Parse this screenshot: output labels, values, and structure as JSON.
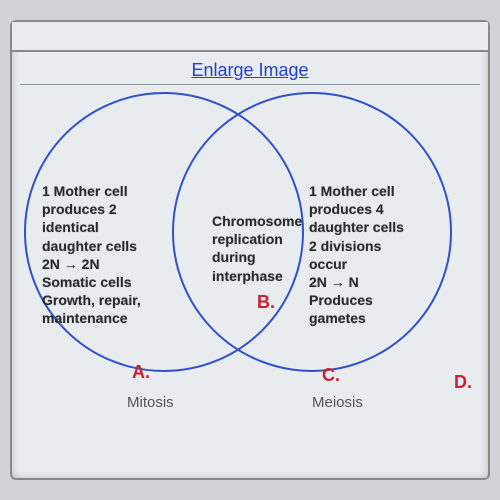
{
  "link_text": "Enlarge Image",
  "venn": {
    "type": "venn-2",
    "circle_border_color": "#3050cc",
    "label_color": "#cc2030",
    "text_color": "#2a2a2a",
    "background": "#e8ecef",
    "left": {
      "lines": [
        "1 Mother cell",
        "produces 2",
        "identical",
        "daughter cells",
        "2N → 2N",
        "Somatic cells",
        "Growth, repair,",
        "maintenance"
      ],
      "label": "A.",
      "caption": "Mitosis"
    },
    "center": {
      "lines": [
        "Chromosome",
        "replication",
        "during",
        "interphase"
      ],
      "label": "B."
    },
    "right": {
      "lines": [
        "1 Mother cell",
        "produces 4",
        "daughter cells",
        "2 divisions",
        "occur",
        "2N → N",
        "Produces",
        "gametes"
      ],
      "label": "C.",
      "caption": "Meiosis"
    },
    "outside_label": "D."
  }
}
